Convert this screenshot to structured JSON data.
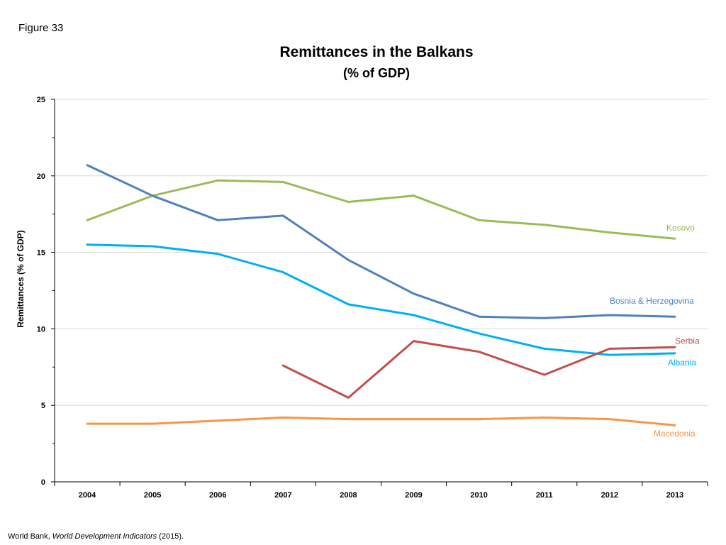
{
  "figure_label": "Figure 33",
  "source": {
    "prefix": "World Bank, ",
    "italic": "World Development Indicators",
    "suffix": " (2015)."
  },
  "chart_data": {
    "type": "line",
    "title": "Remittances in the Balkans",
    "subtitle": "(% of GDP)",
    "xlabel": "",
    "ylabel": "Remittances (% of GDP)",
    "ylim": [
      0,
      25
    ],
    "yticks": [
      0,
      5,
      10,
      15,
      20,
      25
    ],
    "grid": true,
    "x": [
      "2004",
      "2005",
      "2006",
      "2007",
      "2008",
      "2009",
      "2010",
      "2011",
      "2012",
      "2013"
    ],
    "series": [
      {
        "name": "Kosovo",
        "color": "#9BBB59",
        "values": [
          17.1,
          18.7,
          19.7,
          19.6,
          18.3,
          18.7,
          17.1,
          16.8,
          16.3,
          15.9
        ]
      },
      {
        "name": "Bosnia & Herzegovina",
        "color": "#4F81BD",
        "values": [
          20.7,
          18.7,
          17.1,
          17.4,
          14.5,
          12.3,
          10.8,
          10.7,
          10.9,
          10.8
        ]
      },
      {
        "name": "Albania",
        "color": "#00B0F0",
        "values": [
          15.5,
          15.4,
          14.9,
          13.7,
          11.6,
          10.9,
          9.7,
          8.7,
          8.3,
          8.4
        ]
      },
      {
        "name": "Serbia",
        "color": "#C0504D",
        "values": [
          null,
          null,
          null,
          7.6,
          5.5,
          9.2,
          8.5,
          7.0,
          8.7,
          8.8
        ]
      },
      {
        "name": "Macedonia",
        "color": "#F79646",
        "values": [
          3.8,
          3.8,
          4.0,
          4.2,
          4.1,
          4.1,
          4.1,
          4.2,
          4.1,
          3.7
        ]
      }
    ]
  }
}
